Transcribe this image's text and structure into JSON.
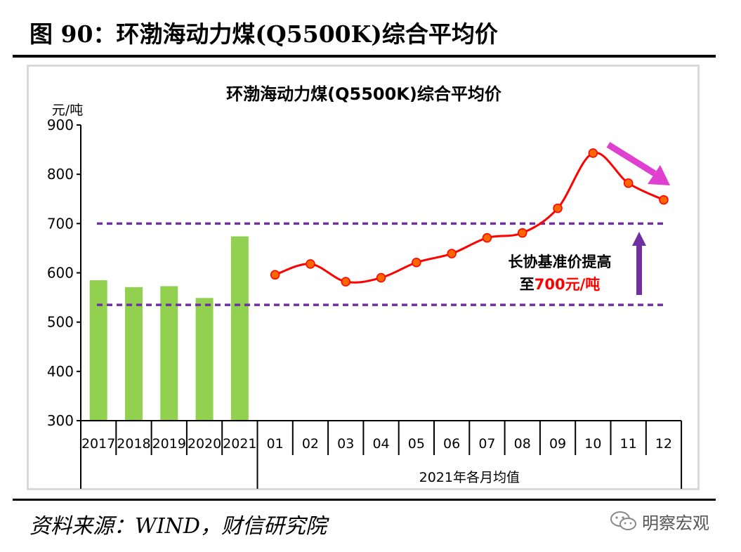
{
  "figure": {
    "title": "图 90：环渤海动力煤(Q5500K)综合平均价",
    "source": "资料来源：WIND，财信研究院",
    "watermark": "明察宏观"
  },
  "chart_data": {
    "type": "bar+line",
    "title": "环渤海动力煤(Q5500K)综合平均价",
    "ylabel": "元/吨",
    "ylim": [
      300,
      900
    ],
    "yticks": [
      300,
      400,
      500,
      600,
      700,
      800,
      900
    ],
    "grid": false,
    "bar_series": {
      "categories": [
        "2017",
        "2018",
        "2019",
        "2020",
        "2021"
      ],
      "values": [
        585,
        571,
        573,
        549,
        674
      ],
      "color": "#92d050"
    },
    "line_series": {
      "categories": [
        "01",
        "02",
        "03",
        "04",
        "05",
        "06",
        "07",
        "08",
        "09",
        "10",
        "11",
        "12"
      ],
      "values": [
        596,
        618,
        582,
        590,
        621,
        639,
        671,
        681,
        731,
        843,
        782,
        748
      ],
      "color": "#ff0000",
      "marker_color": "#ff6600"
    },
    "line_group_label": "2021年各月均值",
    "reference_lines": [
      {
        "value": 700,
        "color": "#7030a0"
      },
      {
        "value": 535,
        "color": "#7030a0"
      }
    ],
    "annotation": {
      "line1": "长协基准价提高",
      "line2_prefix": "至",
      "line2_highlight": "700元/吨",
      "highlight_color": "#ff0000",
      "arrow_color": "#7030a0"
    },
    "trend_arrow_color": "#e040d0"
  }
}
